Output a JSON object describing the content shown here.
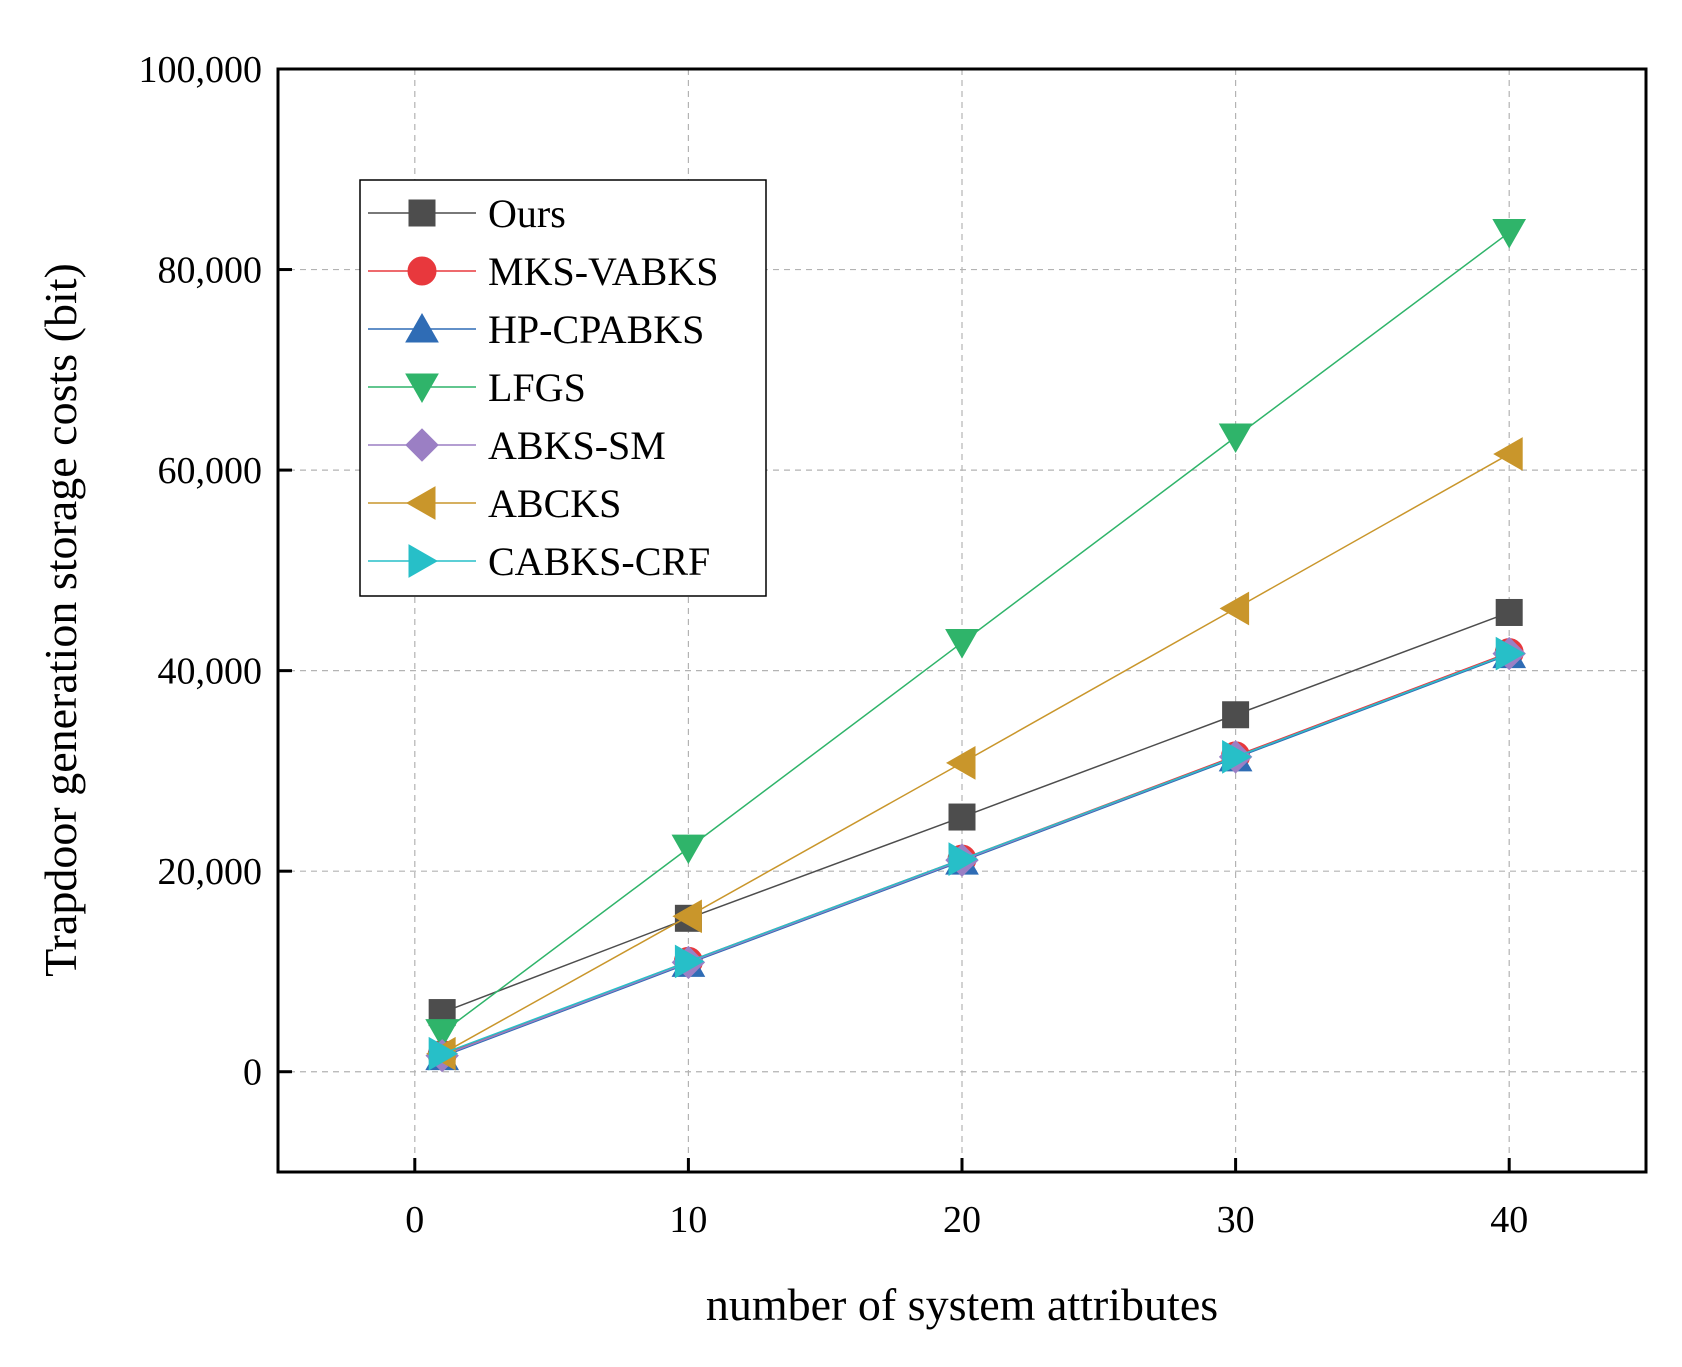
{
  "chart_data": {
    "type": "line",
    "title": "",
    "xlabel": "number of system attributes",
    "ylabel": "Trapdoor generation storage costs (bit)",
    "xlim": [
      -5,
      45
    ],
    "ylim": [
      -10000,
      100000
    ],
    "x_ticks": [
      0,
      10,
      20,
      30,
      40
    ],
    "x_tick_labels": [
      "0",
      "10",
      "20",
      "30",
      "40"
    ],
    "y_ticks": [
      0,
      20000,
      40000,
      60000,
      80000,
      100000
    ],
    "y_tick_labels": [
      "0",
      "20,000",
      "40,000",
      "60,000",
      "80,000",
      "100,000"
    ],
    "grid": true,
    "legend_position": "top-left",
    "x": [
      1,
      10,
      20,
      30,
      40
    ],
    "series": [
      {
        "name": "Ours",
        "values": [
          5900,
          15300,
          25400,
          35600,
          45800
        ],
        "color": "#4d4d4d",
        "marker": "square"
      },
      {
        "name": "MKS-VABKS",
        "values": [
          1700,
          11000,
          21200,
          31500,
          41800
        ],
        "color": "#e8383d",
        "marker": "circle"
      },
      {
        "name": "HP-CPABKS",
        "values": [
          1500,
          10800,
          21000,
          31300,
          41600
        ],
        "color": "#2f6cb5",
        "marker": "triangle-up"
      },
      {
        "name": "LFGS",
        "values": [
          3900,
          22300,
          42800,
          63300,
          83700
        ],
        "color": "#2fb46a",
        "marker": "triangle-down"
      },
      {
        "name": "ABKS-SM",
        "values": [
          1600,
          10900,
          21100,
          31400,
          41700
        ],
        "color": "#9b7fc4",
        "marker": "diamond"
      },
      {
        "name": "ABCKS",
        "values": [
          1800,
          15500,
          30800,
          46200,
          61600
        ],
        "color": "#c9962b",
        "marker": "triangle-left"
      },
      {
        "name": "CABKS-CRF",
        "values": [
          1800,
          11000,
          21200,
          31400,
          41700
        ],
        "color": "#27bfc8",
        "marker": "triangle-right"
      }
    ]
  }
}
